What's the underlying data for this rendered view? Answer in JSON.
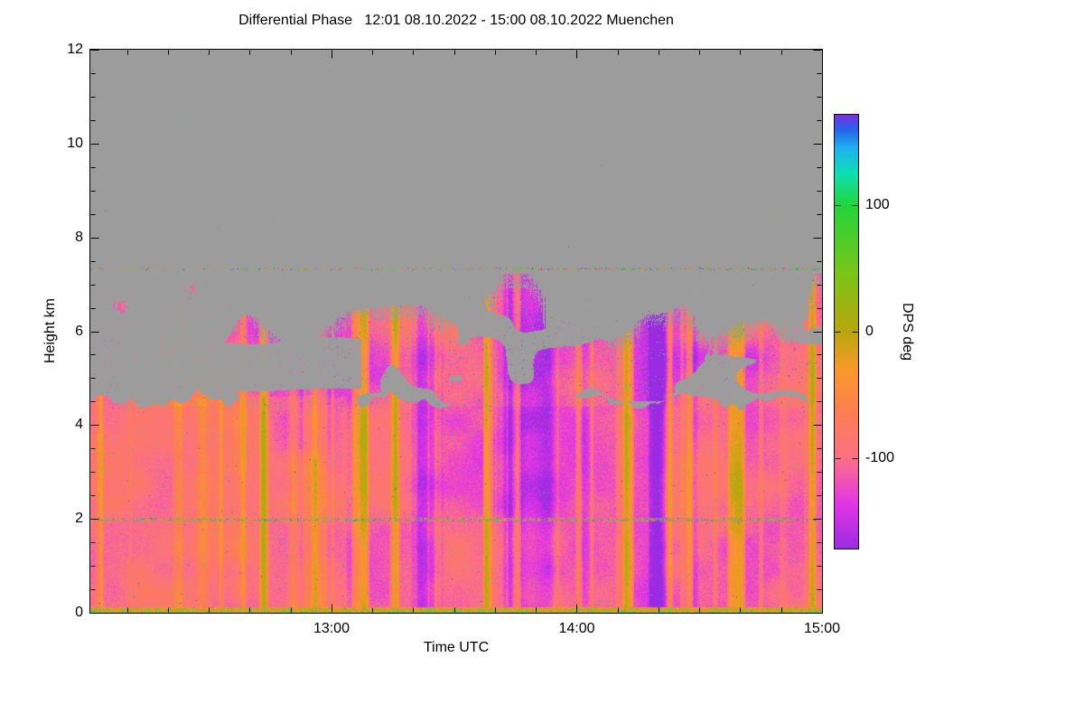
{
  "chart_data": {
    "type": "heatmap",
    "title": "Differential Phase   12:01 08.10.2022 - 15:00 08.10.2022 Muenchen",
    "station": "Muenchen",
    "date": "08.10.2022",
    "time_start": "12:01",
    "time_end": "15:00",
    "xlabel": "Time UTC",
    "ylabel": "Height km",
    "ylim": [
      0,
      12
    ],
    "x_span_minutes": 179,
    "x_ticks": [
      {
        "label": "13:00",
        "minute": 59
      },
      {
        "label": "14:00",
        "minute": 119
      },
      {
        "label": "15:00",
        "minute": 179
      }
    ],
    "x_minor_every_minutes": 10,
    "y_ticks": [
      {
        "label": "0",
        "km": 0
      },
      {
        "label": "2",
        "km": 2
      },
      {
        "label": "4",
        "km": 4
      },
      {
        "label": "6",
        "km": 6
      },
      {
        "label": "8",
        "km": 8
      },
      {
        "label": "10",
        "km": 10
      },
      {
        "label": "12",
        "km": 12
      }
    ],
    "y_minor_every_km": 0.5,
    "colorbar": {
      "label": "DPS deg",
      "vmin": -171,
      "vmax": 171,
      "ticks": [
        {
          "label": "100",
          "value": 100
        },
        {
          "label": "0",
          "value": 0
        },
        {
          "label": "-100",
          "value": -100
        }
      ],
      "colormap": [
        [
          -171,
          "#9b2be2"
        ],
        [
          -135,
          "#e436e4"
        ],
        [
          -100,
          "#fc7086"
        ],
        [
          -65,
          "#fd7d55"
        ],
        [
          -30,
          "#f9992a"
        ],
        [
          0,
          "#b9a60e"
        ],
        [
          45,
          "#7cc417"
        ],
        [
          100,
          "#22d53c"
        ],
        [
          125,
          "#0ddfb5"
        ],
        [
          145,
          "#1fb0f2"
        ],
        [
          160,
          "#295fe9"
        ],
        [
          171,
          "#7c2ee4"
        ]
      ]
    },
    "no_data_color": "#9c9c9c",
    "field_summary": {
      "description": "Noisy differential phase field: mostly -80 to -150 deg (pink/magenta with orange vertical streaks) below ~4.5 km, patchy cloud layer between 4.5 and ~7.2 km with gray data gaps, no data (gray) above cloud top; multicolor speckle artifact lines near 2.0 km and 7.33 km; bright orange/yellow surface return stripe below 0.12 km; clear-air hole 4.8-5.85 km before ~13:05",
      "base_value_deg": -104,
      "mixed_layer_top_km": 4.5,
      "cloud_top_range_km": [
        5.6,
        7.2
      ],
      "artifact_lines_km": [
        1.98,
        7.33
      ],
      "surface_stripe_km": 0.12,
      "clear_air_hole": {
        "t_frac_max": 0.37,
        "h_min_km": 4.8,
        "h_max_km": 5.85
      }
    },
    "render_seed": 20221008
  }
}
